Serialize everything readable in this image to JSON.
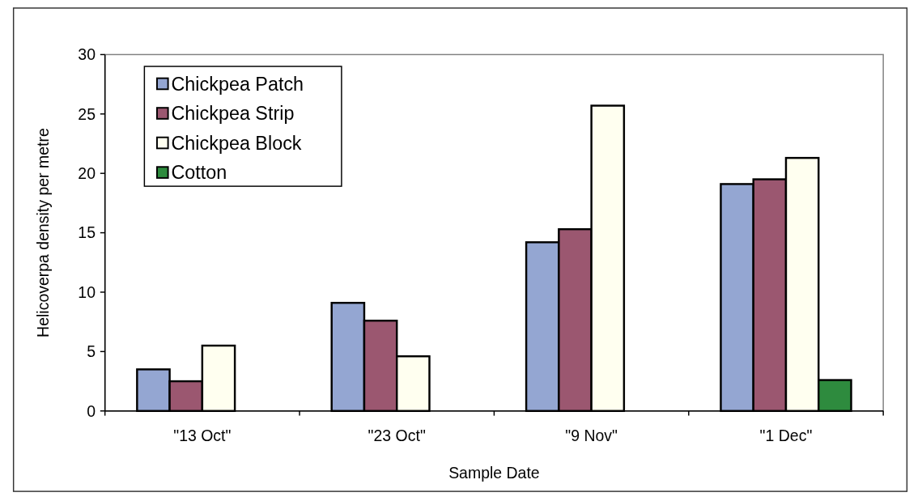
{
  "chart_data": {
    "type": "bar",
    "xlabel": "Sample Date",
    "ylabel": "Helicoverpa density per metre",
    "categories": [
      "\"13 Oct\"",
      "\"23 Oct\"",
      "\"9 Nov\"",
      "\"1 Dec\""
    ],
    "series": [
      {
        "name": "Chickpea Patch",
        "color": "#94a6d2",
        "values": [
          3.5,
          9.1,
          14.2,
          19.1
        ]
      },
      {
        "name": "Chickpea Strip",
        "color": "#9b5770",
        "values": [
          2.5,
          7.6,
          15.3,
          19.5
        ]
      },
      {
        "name": "Chickpea Block",
        "color": "#fffff0",
        "values": [
          5.5,
          4.6,
          25.7,
          21.3
        ]
      },
      {
        "name": "Cotton",
        "color": "#2e8b3e",
        "values": [
          null,
          null,
          null,
          2.6
        ]
      }
    ],
    "ylim": [
      0,
      30
    ],
    "yticks": [
      0,
      5,
      10,
      15,
      20,
      25,
      30
    ],
    "grid": false,
    "legend": "top left"
  }
}
